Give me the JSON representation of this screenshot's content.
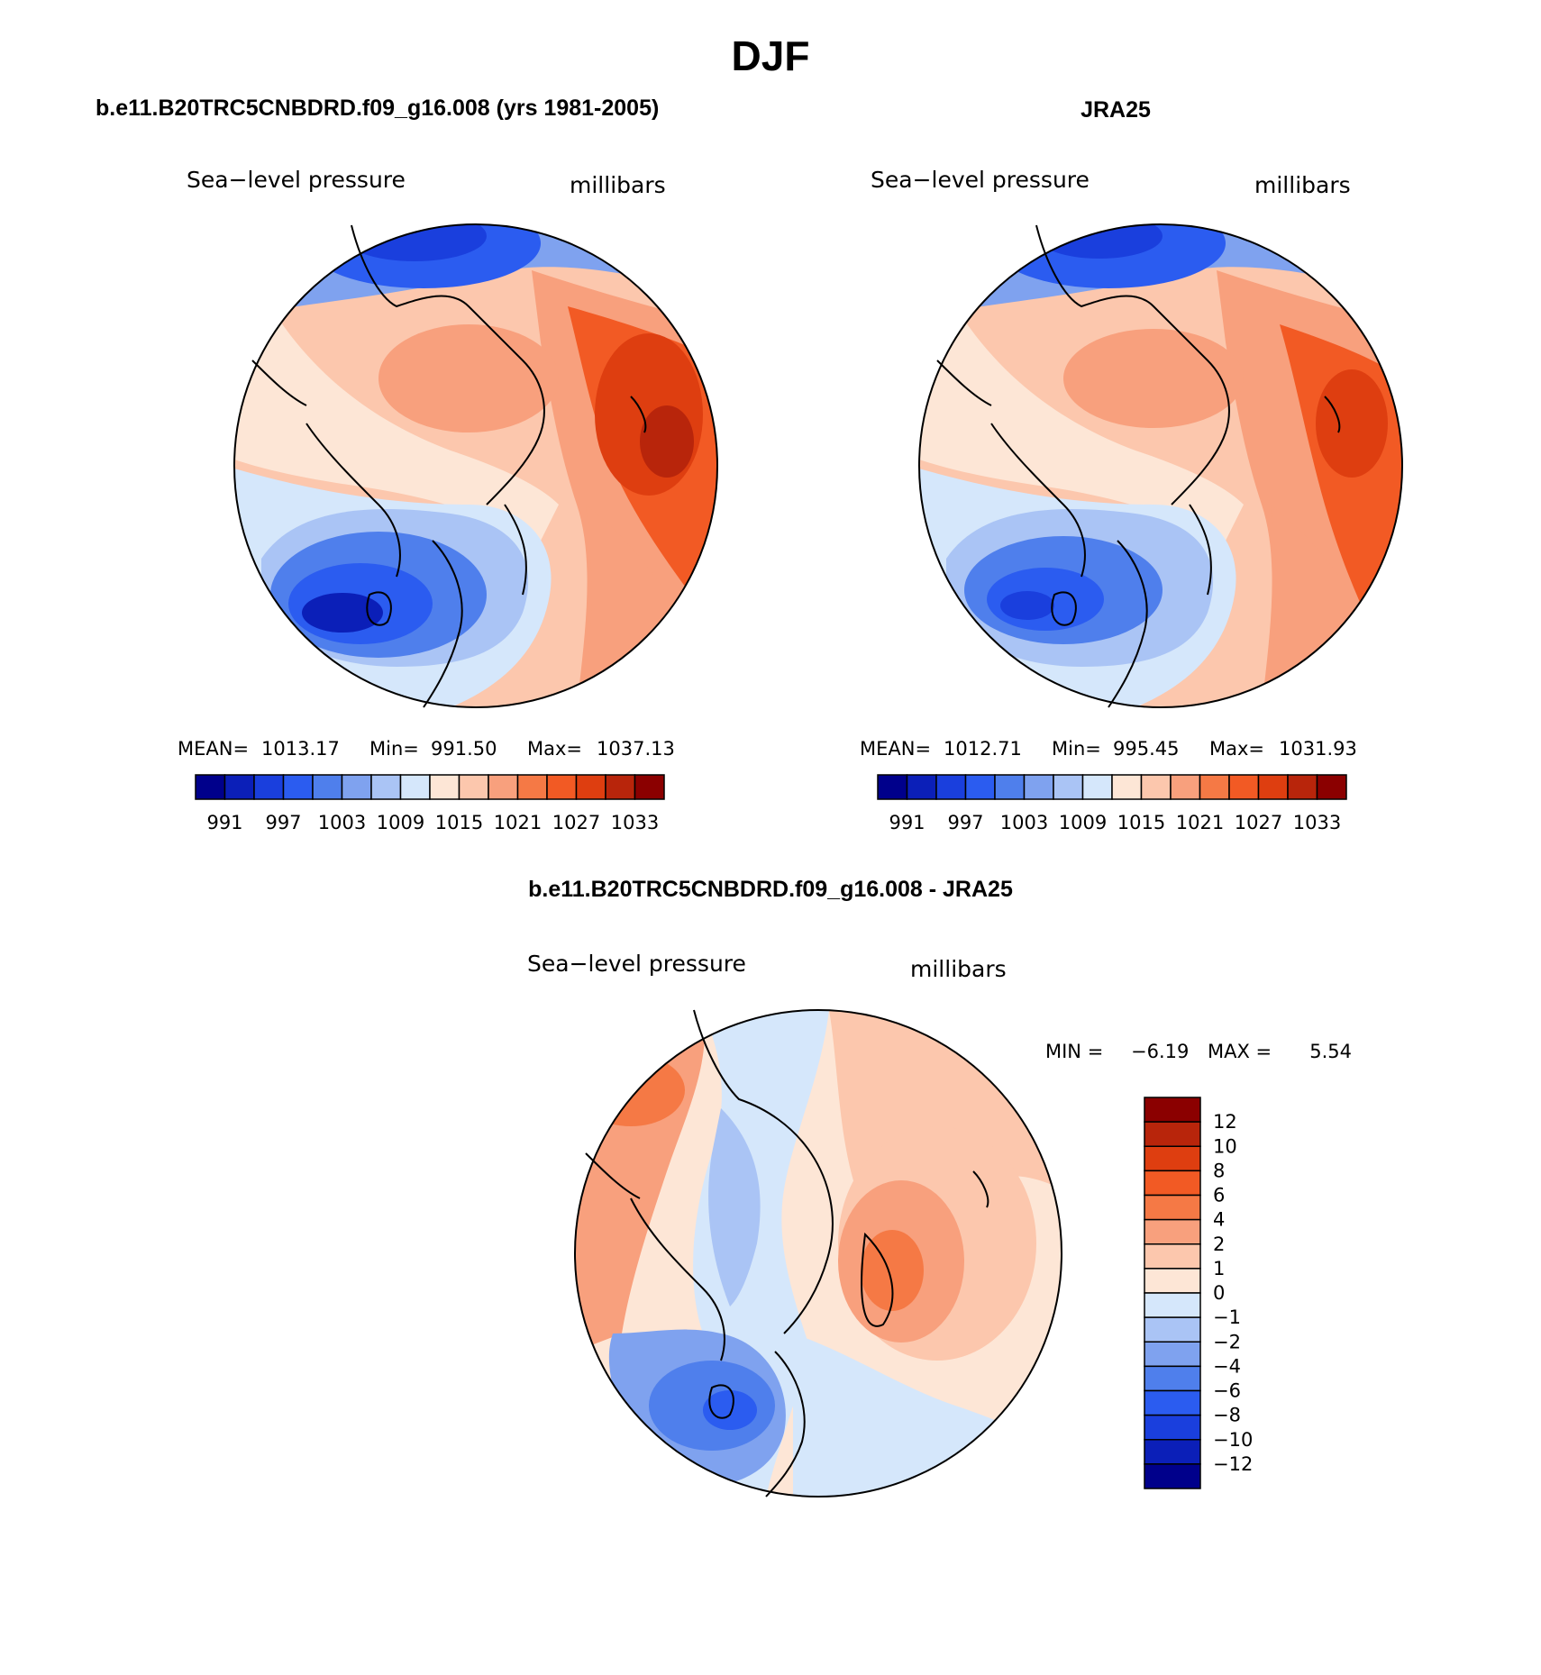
{
  "title": "DJF",
  "panels": [
    {
      "subtitle": "b.e11.B20TRC5CNBDRD.f09_g16.008 (yrs 1981-2005)",
      "left_label": "Sea−level pressure",
      "right_label": "millibars",
      "stats": {
        "mean_label": "MEAN=",
        "mean": "1013.17",
        "min_label": "Min=",
        "min": "991.50",
        "max_label": "Max=",
        "max": "1037.13"
      },
      "colorbar": {
        "colors": [
          "#00008b",
          "#0b1fb8",
          "#1a3fdd",
          "#2b5cf0",
          "#4f7fec",
          "#7fa2ef",
          "#aac4f5",
          "#d5e7fb",
          "#fde6d6",
          "#fcc7ad",
          "#f8a07d",
          "#f57945",
          "#f25a24",
          "#de3e10",
          "#b8250b",
          "#8b0000"
        ],
        "tick_labels": [
          "991",
          "997",
          "1003",
          "1009",
          "1015",
          "1021",
          "1027",
          "1033"
        ]
      }
    },
    {
      "subtitle": "JRA25",
      "left_label": "Sea−level pressure",
      "right_label": "millibars",
      "stats": {
        "mean_label": "MEAN=",
        "mean": "1012.71",
        "min_label": "Min=",
        "min": "995.45",
        "max_label": "Max=",
        "max": "1031.93"
      },
      "colorbar": {
        "colors": [
          "#00008b",
          "#0b1fb8",
          "#1a3fdd",
          "#2b5cf0",
          "#4f7fec",
          "#7fa2ef",
          "#aac4f5",
          "#d5e7fb",
          "#fde6d6",
          "#fcc7ad",
          "#f8a07d",
          "#f57945",
          "#f25a24",
          "#de3e10",
          "#b8250b",
          "#8b0000"
        ],
        "tick_labels": [
          "991",
          "997",
          "1003",
          "1009",
          "1015",
          "1021",
          "1027",
          "1033"
        ]
      }
    }
  ],
  "diff_panel": {
    "subtitle": "b.e11.B20TRC5CNBDRD.f09_g16.008 - JRA25",
    "left_label": "Sea−level pressure",
    "right_label": "millibars",
    "stats": {
      "min_label": "MIN =",
      "min": "−6.19",
      "max_label": "MAX =",
      "max": "5.54"
    },
    "colorbar": {
      "colors_top_to_bottom": [
        "#8b0000",
        "#b8250b",
        "#de3e10",
        "#f25a24",
        "#f57945",
        "#f8a07d",
        "#fcc7ad",
        "#fde6d6",
        "#d5e7fb",
        "#aac4f5",
        "#7fa2ef",
        "#4f7fec",
        "#2b5cf0",
        "#1a3fdd",
        "#0b1fb8",
        "#00008b"
      ],
      "tick_labels_top_to_bottom": [
        "12",
        "10",
        "8",
        "6",
        "4",
        "2",
        "1",
        "0",
        "−1",
        "−2",
        "−4",
        "−6",
        "−8",
        "−10",
        "−12"
      ]
    }
  },
  "map_colors": {
    "deep_blue": "#1a3fdd",
    "mid_blue": "#4f7fec",
    "light_blue": "#aac4f5",
    "pale_blue": "#d5e7fb",
    "pale_orange": "#fde6d6",
    "light_orange": "#fcc7ad",
    "orange": "#f8a07d",
    "strong_orange": "#f25a24",
    "dark_red": "#b8250b"
  }
}
